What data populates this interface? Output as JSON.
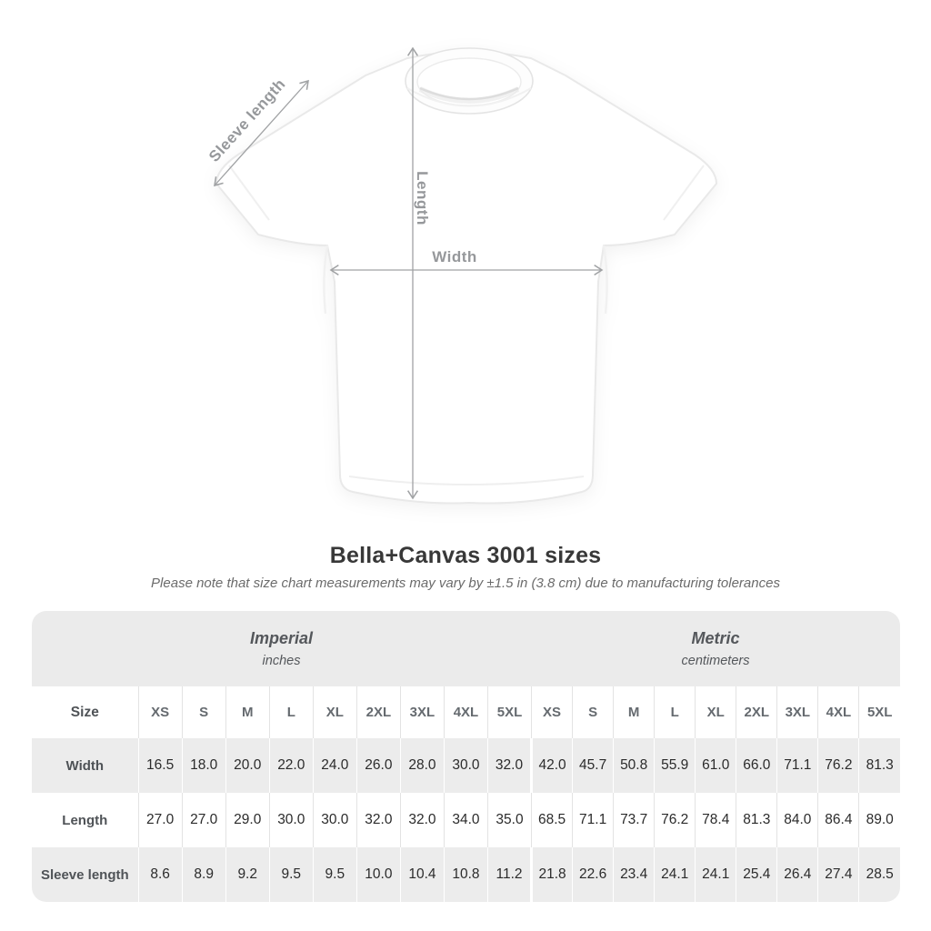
{
  "shirt_diagram": {
    "sleeve_label": "Sleeve length",
    "length_label": "Length",
    "width_label": "Width"
  },
  "header": {
    "title": "Bella+Canvas 3001 sizes",
    "note": "Please note that size chart measurements may vary by ±1.5 in (3.8 cm) due to manufacturing tolerances"
  },
  "size_table": {
    "imperial_label": "Imperial",
    "imperial_unit": "inches",
    "metric_label": "Metric",
    "metric_unit": "centimeters",
    "corner_label": "Size",
    "sizes": [
      "XS",
      "S",
      "M",
      "L",
      "XL",
      "2XL",
      "3XL",
      "4XL",
      "5XL"
    ],
    "rows": [
      {
        "label": "Width",
        "imperial": [
          "16.5",
          "18.0",
          "20.0",
          "22.0",
          "24.0",
          "26.0",
          "28.0",
          "30.0",
          "32.0"
        ],
        "metric": [
          "42.0",
          "45.7",
          "50.8",
          "55.9",
          "61.0",
          "66.0",
          "71.1",
          "76.2",
          "81.3"
        ]
      },
      {
        "label": "Length",
        "imperial": [
          "27.0",
          "27.0",
          "29.0",
          "30.0",
          "30.0",
          "32.0",
          "32.0",
          "34.0",
          "35.0"
        ],
        "metric": [
          "68.5",
          "71.1",
          "73.7",
          "76.2",
          "78.4",
          "81.3",
          "84.0",
          "86.4",
          "89.0"
        ]
      },
      {
        "label": "Sleeve length",
        "imperial": [
          "8.6",
          "8.9",
          "9.2",
          "9.5",
          "9.5",
          "10.0",
          "10.4",
          "10.8",
          "11.2"
        ],
        "metric": [
          "21.8",
          "22.6",
          "23.4",
          "24.1",
          "24.1",
          "25.4",
          "26.4",
          "27.4",
          "28.5"
        ]
      }
    ]
  },
  "chart_data": {
    "type": "table",
    "title": "Bella+Canvas 3001 sizes",
    "note": "Please note that size chart measurements may vary by ±1.5 in (3.8 cm) due to manufacturing tolerances",
    "columns": [
      "XS",
      "S",
      "M",
      "L",
      "XL",
      "2XL",
      "3XL",
      "4XL",
      "5XL"
    ],
    "units": {
      "imperial": "inches",
      "metric": "centimeters"
    },
    "measurements": {
      "width_in": [
        16.5,
        18.0,
        20.0,
        22.0,
        24.0,
        26.0,
        28.0,
        30.0,
        32.0
      ],
      "length_in": [
        27.0,
        27.0,
        29.0,
        30.0,
        30.0,
        32.0,
        32.0,
        34.0,
        35.0
      ],
      "sleeve_in": [
        8.6,
        8.9,
        9.2,
        9.5,
        9.5,
        10.0,
        10.4,
        10.8,
        11.2
      ],
      "width_cm": [
        42.0,
        45.7,
        50.8,
        55.9,
        61.0,
        66.0,
        71.1,
        76.2,
        81.3
      ],
      "length_cm": [
        68.5,
        71.1,
        73.7,
        76.2,
        78.4,
        81.3,
        84.0,
        86.4,
        89.0
      ],
      "sleeve_cm": [
        21.8,
        22.6,
        23.4,
        24.1,
        24.1,
        25.4,
        26.4,
        27.4,
        28.5
      ]
    }
  },
  "colors": {
    "annotation_gray": "#a0a2a4",
    "stripe_gray": "#ececec",
    "band_gray": "#ebebeb",
    "value_text": "#2b2b2b",
    "label_text": "#4f5357"
  }
}
